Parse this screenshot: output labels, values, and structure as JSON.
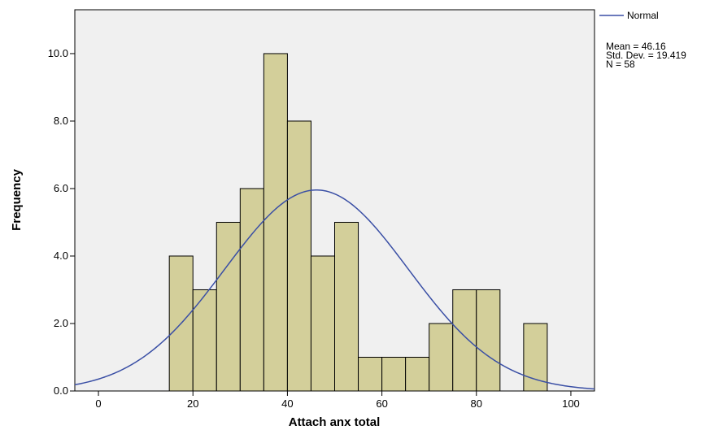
{
  "chart_data": {
    "type": "bar",
    "subtype": "histogram",
    "xlabel": "Attach anx total",
    "ylabel": "Frequency",
    "xlim": [
      -5,
      105
    ],
    "ylim": [
      0,
      11.3
    ],
    "x_ticks": [
      0,
      20,
      40,
      60,
      80,
      100
    ],
    "y_ticks": [
      0.0,
      2.0,
      4.0,
      6.0,
      8.0,
      10.0
    ],
    "x_tick_labels": [
      "0",
      "20",
      "40",
      "60",
      "80",
      "100"
    ],
    "y_tick_labels": [
      "0.0",
      "2.0",
      "4.0",
      "6.0",
      "8.0",
      "10.0"
    ],
    "bin_width": 5,
    "bins": [
      {
        "start": 15,
        "end": 20,
        "count": 4
      },
      {
        "start": 20,
        "end": 25,
        "count": 3
      },
      {
        "start": 25,
        "end": 30,
        "count": 5
      },
      {
        "start": 30,
        "end": 35,
        "count": 6
      },
      {
        "start": 35,
        "end": 40,
        "count": 10
      },
      {
        "start": 40,
        "end": 45,
        "count": 8
      },
      {
        "start": 45,
        "end": 50,
        "count": 4
      },
      {
        "start": 50,
        "end": 55,
        "count": 5
      },
      {
        "start": 55,
        "end": 60,
        "count": 1
      },
      {
        "start": 60,
        "end": 65,
        "count": 1
      },
      {
        "start": 65,
        "end": 70,
        "count": 1
      },
      {
        "start": 70,
        "end": 75,
        "count": 2
      },
      {
        "start": 75,
        "end": 80,
        "count": 3
      },
      {
        "start": 80,
        "end": 85,
        "count": 3
      },
      {
        "start": 90,
        "end": 95,
        "count": 2
      }
    ],
    "normal_curve": {
      "mean": 46.16,
      "std_dev": 19.419,
      "n": 58
    },
    "legend": {
      "entries": [
        "Normal"
      ],
      "placement": "top-right"
    },
    "stats_lines": [
      "Mean = 46.16",
      "Std. Dev. = 19.419",
      "N = 58"
    ],
    "grid": false,
    "colors": {
      "bar_fill": "#d3cf9a",
      "bar_stroke": "#000000",
      "plot_bg": "#f0f0f0",
      "curve": "#3a4fa5"
    }
  }
}
